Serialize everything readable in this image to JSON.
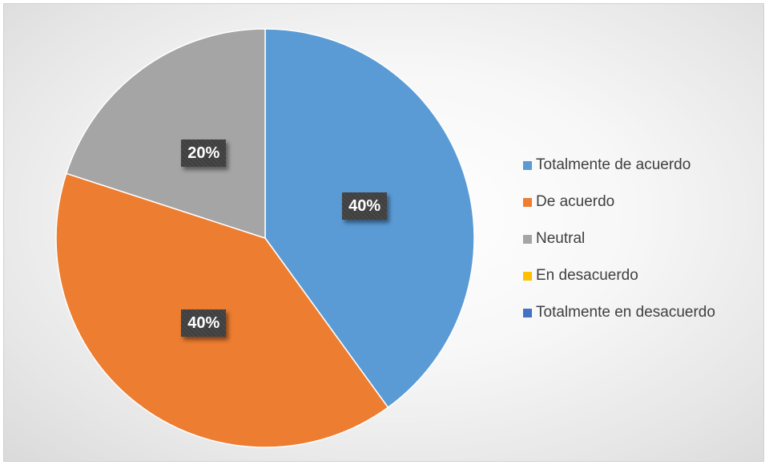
{
  "chart_data": {
    "type": "pie",
    "title": "",
    "categories": [
      "Totalmente de acuerdo",
      "De acuerdo",
      "Neutral",
      "En desacuerdo",
      "Totalmente en desacuerdo"
    ],
    "values": [
      40,
      40,
      20,
      0,
      0
    ],
    "data_labels": [
      "40%",
      "40%",
      "20%",
      "",
      ""
    ],
    "colors": [
      "#5B9BD5",
      "#ED7D31",
      "#A5A5A5",
      "#FFC000",
      "#4472C4"
    ],
    "start_angle_deg": 0,
    "direction": "clockwise",
    "legend_position": "right"
  }
}
